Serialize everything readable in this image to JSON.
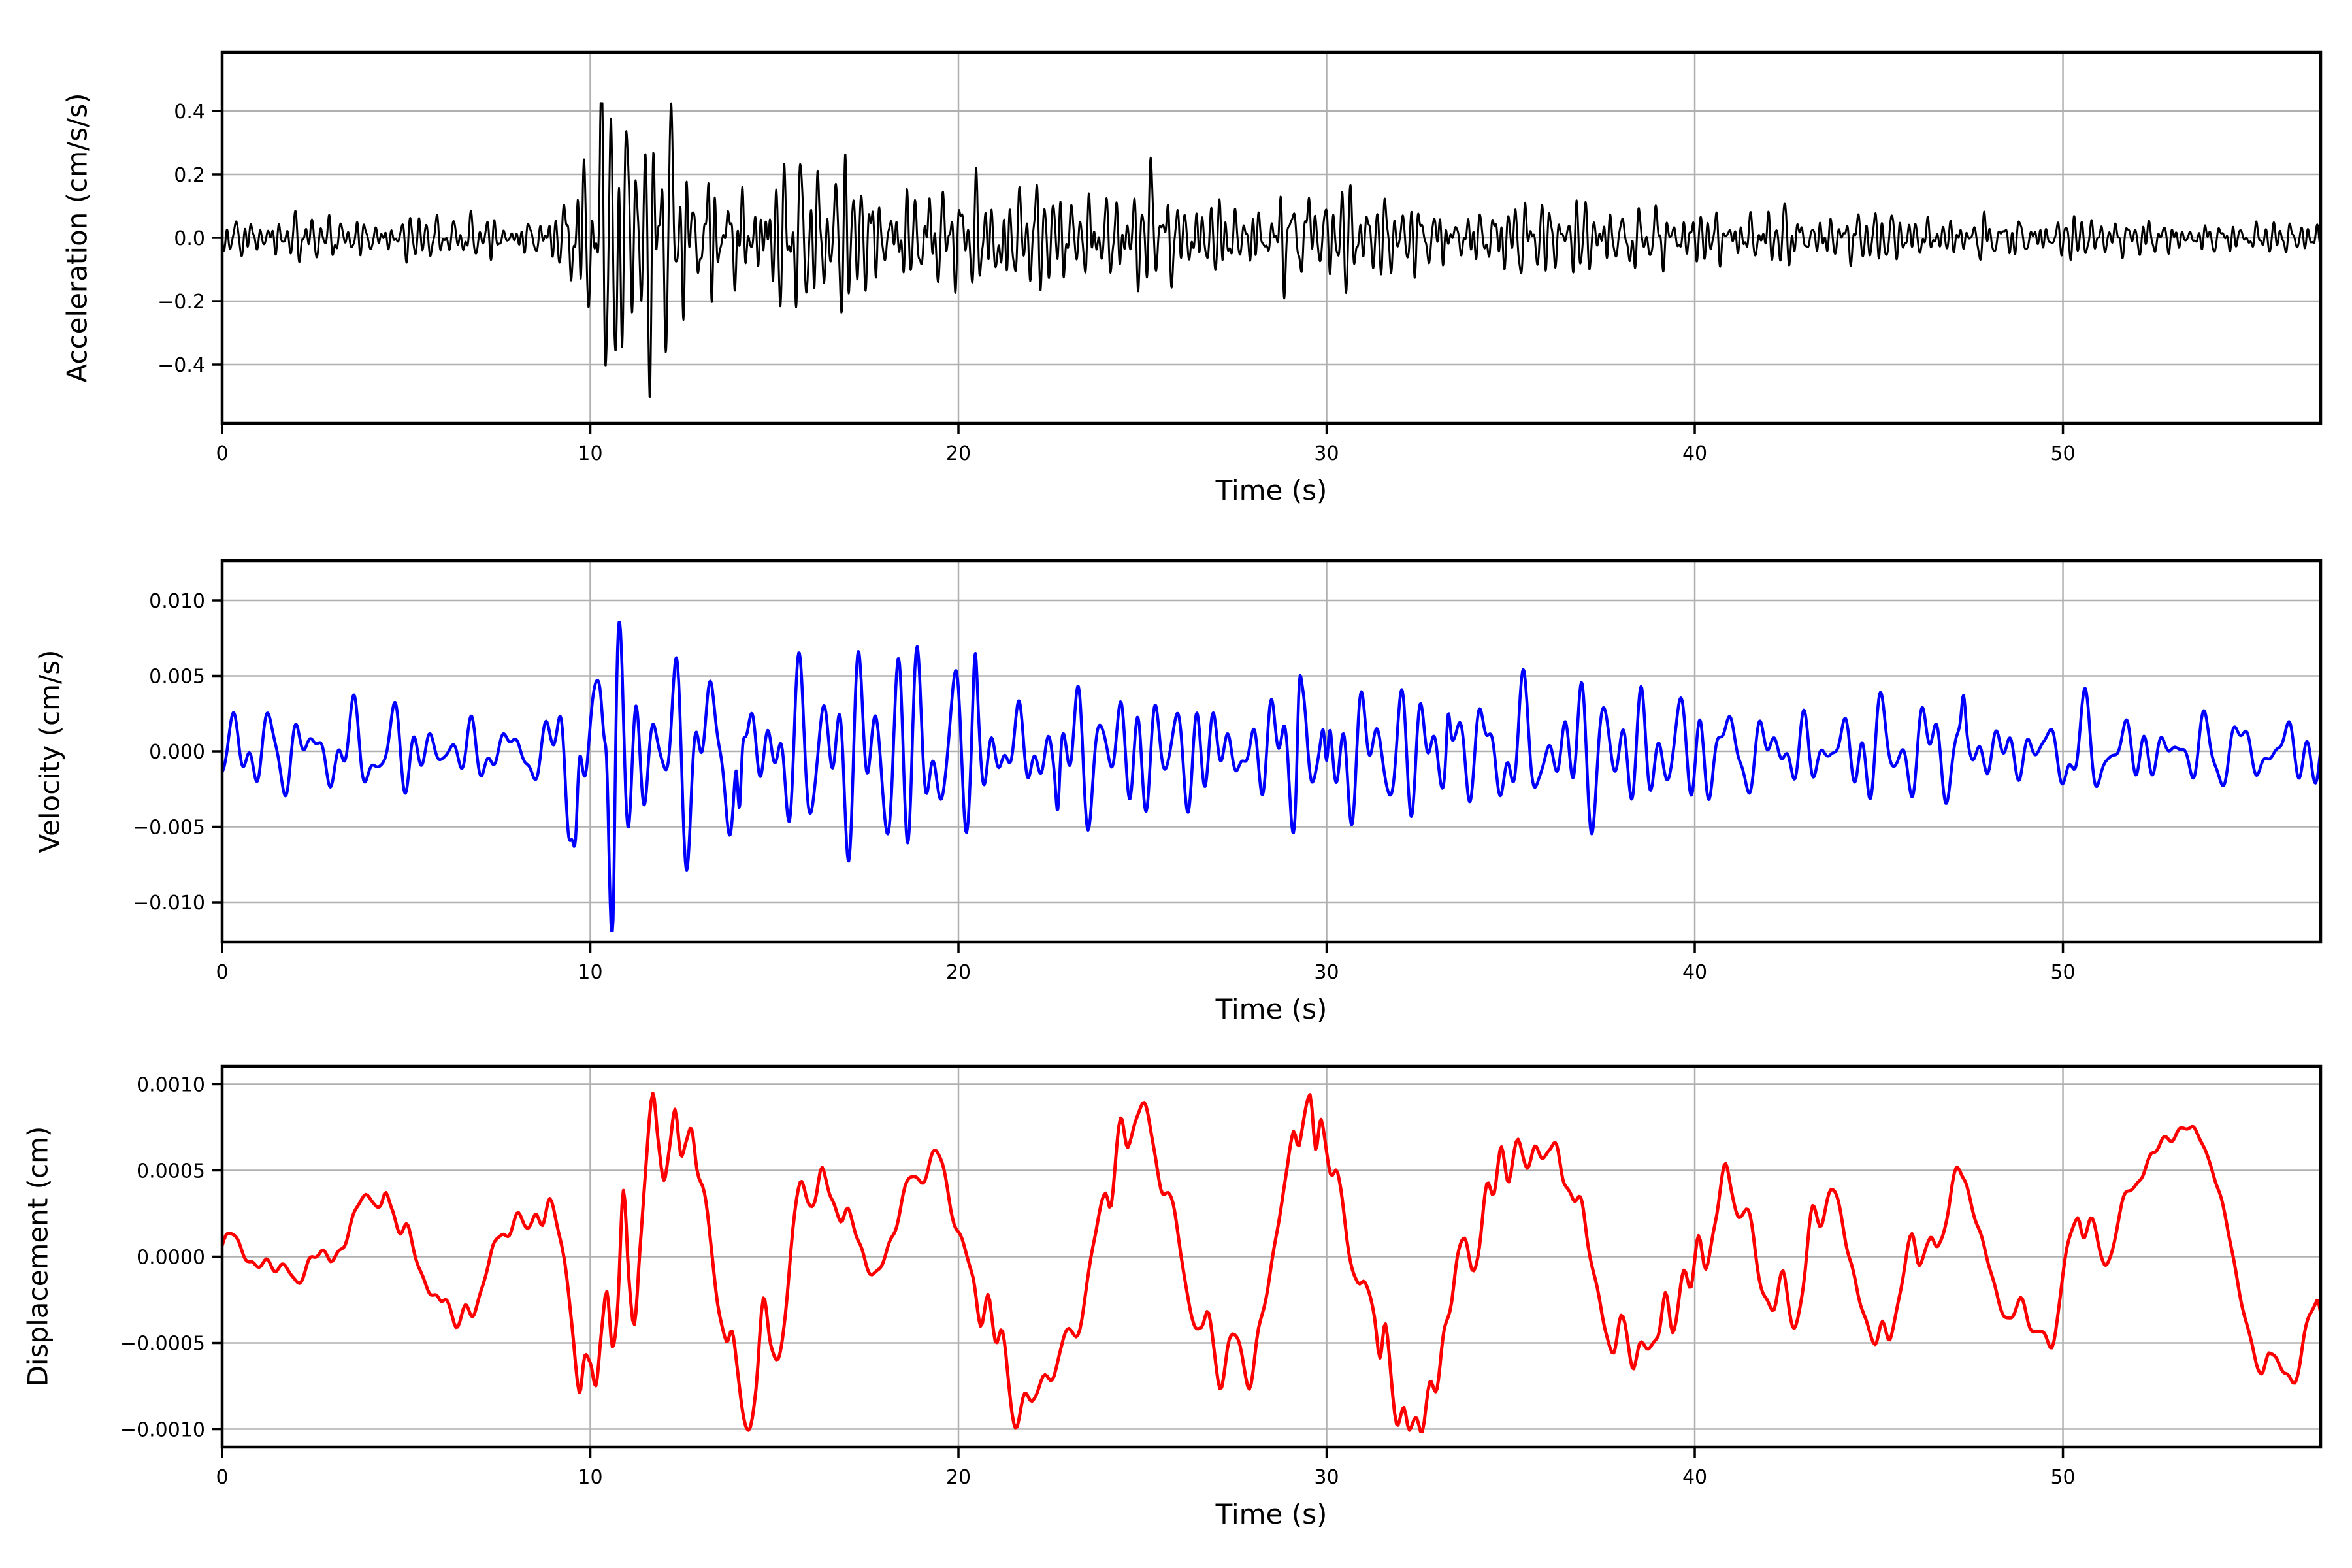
{
  "figure": {
    "background": "#ffffff",
    "grid_color": "#b0b0b0",
    "axis_color": "#000000",
    "n_subplots": 3,
    "description": "Three stacked seismogram traces: acceleration, velocity and displacement versus time"
  },
  "chart_data": [
    {
      "type": "line",
      "series_name": "acceleration",
      "color": "#000000",
      "xlabel": "Time (s)",
      "ylabel": "Acceleration (cm/s/s)",
      "xlim": [
        0,
        57
      ],
      "ylim": [
        -0.5855,
        0.5855
      ],
      "grid": true,
      "legend_position": "none",
      "xtick_values": [
        0,
        10,
        20,
        30,
        40,
        50
      ],
      "xtick_labels": [
        "0",
        "10",
        "20",
        "30",
        "40",
        "50"
      ],
      "ytick_values": [
        0.4,
        0.2,
        0.0,
        -0.2,
        -0.4
      ],
      "ytick_labels": [
        "0.4",
        "0.2",
        "0.0",
        "−0.2",
        "−0.4"
      ],
      "notable_peaks": {
        "max": 0.42,
        "max_t": 11.0,
        "min": -0.55,
        "min_t": 10.7
      },
      "signal": {
        "kind": "stochastic",
        "t_max": 57,
        "dt": 0.01,
        "freq_band_hz": [
          1.5,
          8.0
        ],
        "components": 12,
        "seed": 11,
        "norm_factor": 0.45,
        "envelope_t": [
          0,
          2,
          4,
          6,
          8,
          9,
          9.4,
          9.8,
          10.2,
          10.6,
          11,
          11.5,
          12,
          13,
          14,
          15,
          16,
          17,
          18,
          19,
          20,
          21,
          22,
          23,
          24,
          25,
          26,
          27,
          28,
          29,
          30,
          32,
          34,
          36,
          38,
          40,
          42,
          44,
          46,
          48,
          50,
          52,
          54,
          56,
          57
        ],
        "envelope_a": [
          0.06,
          0.065,
          0.06,
          0.062,
          0.065,
          0.08,
          0.18,
          0.27,
          0.32,
          0.34,
          0.32,
          0.3,
          0.29,
          0.25,
          0.23,
          0.215,
          0.2,
          0.18,
          0.165,
          0.155,
          0.16,
          0.17,
          0.15,
          0.145,
          0.14,
          0.15,
          0.125,
          0.125,
          0.13,
          0.15,
          0.125,
          0.115,
          0.11,
          0.105,
          0.1,
          0.09,
          0.085,
          0.08,
          0.075,
          0.07,
          0.065,
          0.06,
          0.055,
          0.052,
          0.05
        ],
        "spikes": [
          {
            "t": 10.33,
            "a": 0.2,
            "w": 0.04
          },
          {
            "t": 10.72,
            "a": -0.33,
            "w": 0.035
          },
          {
            "t": 11.0,
            "a": 0.2,
            "w": 0.04
          },
          {
            "t": 11.6,
            "a": -0.1,
            "w": 0.05
          },
          {
            "t": 12.2,
            "a": 0.13,
            "w": 0.05
          },
          {
            "t": 21.15,
            "a": -0.1,
            "w": 0.05
          },
          {
            "t": 25.3,
            "a": 0.14,
            "w": 0.04
          },
          {
            "t": 29.6,
            "a": 0.07,
            "w": 0.05
          },
          {
            "t": 38.3,
            "a": -0.05,
            "w": 0.05
          }
        ],
        "clip": [
          -0.555,
          0.425
        ]
      }
    },
    {
      "type": "line",
      "series_name": "velocity",
      "color": "#0000ff",
      "xlabel": "Time (s)",
      "ylabel": "Velocity (cm/s)",
      "xlim": [
        0,
        57
      ],
      "ylim": [
        -0.01264,
        0.01264
      ],
      "grid": true,
      "legend_position": "none",
      "xtick_values": [
        0,
        10,
        20,
        30,
        40,
        50
      ],
      "xtick_labels": [
        "0",
        "10",
        "20",
        "30",
        "40",
        "50"
      ],
      "ytick_values": [
        0.01,
        0.005,
        0.0,
        -0.005,
        -0.01
      ],
      "ytick_labels": [
        "0.010",
        "0.005",
        "0.000",
        "−0.005",
        "−0.010"
      ],
      "notable_peaks": {
        "max": 0.0095,
        "max_t": 10.4,
        "min": -0.0118,
        "min_t": 10.6
      },
      "signal": {
        "kind": "stochastic",
        "t_max": 57,
        "dt": 0.02,
        "freq_band_hz": [
          0.7,
          3.2
        ],
        "components": 10,
        "seed": 23,
        "norm_factor": 0.42,
        "envelope_t": [
          0,
          2,
          4,
          6,
          8,
          9,
          9.4,
          9.8,
          10.2,
          10.6,
          11,
          11.5,
          12,
          12.5,
          13,
          13.5,
          14,
          14.5,
          15,
          16,
          17,
          18,
          19,
          20,
          21,
          22,
          23,
          24,
          25,
          26,
          27,
          28,
          29,
          29.6,
          30,
          31,
          32,
          33,
          34,
          35,
          36,
          37,
          38,
          39,
          40,
          42,
          44,
          46,
          48,
          50,
          52,
          54,
          56,
          57
        ],
        "envelope_a": [
          0.0022,
          0.0028,
          0.0026,
          0.0021,
          0.002,
          0.0024,
          0.006,
          0.008,
          0.0085,
          0.0095,
          0.008,
          0.0078,
          0.0068,
          0.006,
          0.0055,
          0.0058,
          0.0062,
          0.006,
          0.0052,
          0.0056,
          0.0054,
          0.0056,
          0.0055,
          0.0052,
          0.005,
          0.0052,
          0.0048,
          0.0045,
          0.0048,
          0.0042,
          0.0048,
          0.005,
          0.006,
          0.0065,
          0.0055,
          0.0042,
          0.0042,
          0.0048,
          0.0042,
          0.0044,
          0.004,
          0.0037,
          0.0033,
          0.0031,
          0.0032,
          0.0029,
          0.003,
          0.0029,
          0.0026,
          0.0022,
          0.0022,
          0.002,
          0.0019,
          0.0019
        ],
        "spikes": [
          {
            "t": 9.6,
            "a": -0.0055,
            "w": 0.06
          },
          {
            "t": 10.45,
            "a": 0.005,
            "w": 0.05
          },
          {
            "t": 10.62,
            "a": -0.0065,
            "w": 0.05
          },
          {
            "t": 14.05,
            "a": -0.0058,
            "w": 0.05
          },
          {
            "t": 20.45,
            "a": 0.0028,
            "w": 0.05
          },
          {
            "t": 22.7,
            "a": -0.0032,
            "w": 0.05
          },
          {
            "t": 29.25,
            "a": 0.0035,
            "w": 0.05
          },
          {
            "t": 30.0,
            "a": -0.004,
            "w": 0.05
          },
          {
            "t": 33.3,
            "a": 0.003,
            "w": 0.05
          },
          {
            "t": 47.3,
            "a": 0.0022,
            "w": 0.05
          }
        ],
        "clip": [
          -0.0119,
          0.0097
        ]
      }
    },
    {
      "type": "line",
      "series_name": "displacement",
      "color": "#ff0000",
      "xlabel": "Time (s)",
      "ylabel": "Displacement (cm)",
      "xlim": [
        0,
        57
      ],
      "ylim": [
        -0.001104,
        0.001104
      ],
      "grid": true,
      "legend_position": "none",
      "xtick_values": [
        0,
        10,
        20,
        30,
        40,
        50
      ],
      "xtick_labels": [
        "0",
        "10",
        "20",
        "30",
        "40",
        "50"
      ],
      "ytick_values": [
        0.001,
        0.0005,
        0.0,
        -0.0005,
        -0.001
      ],
      "ytick_labels": [
        "0.0010",
        "0.0005",
        "0.0000",
        "−0.0005",
        "−0.0010"
      ],
      "notable_peaks": {
        "max": 0.00094,
        "max_t": 29.5,
        "min": -0.00104,
        "min_t": 21.6
      },
      "signal": {
        "kind": "anchors",
        "t_max": 57,
        "unit_scale": 0.0001,
        "anchors_t": [
          0,
          0.3,
          0.6,
          0.9,
          1.2,
          1.5,
          1.8,
          2.1,
          2.4,
          2.7,
          3.0,
          3.3,
          3.6,
          3.9,
          4.1,
          4.3,
          4.45,
          4.6,
          4.8,
          5.0,
          5.2,
          5.5,
          5.9,
          6.1,
          6.35,
          6.6,
          6.8,
          7.0,
          7.2,
          7.4,
          7.6,
          7.8,
          8.0,
          8.2,
          8.5,
          8.7,
          8.9,
          9.1,
          9.3,
          9.5,
          9.7,
          9.85,
          10.0,
          10.15,
          10.3,
          10.45,
          10.6,
          10.75,
          10.9,
          11.05,
          11.2,
          11.35,
          11.5,
          11.7,
          11.85,
          12.0,
          12.15,
          12.3,
          12.45,
          12.6,
          12.75,
          12.9,
          13.1,
          13.3,
          13.5,
          13.7,
          13.85,
          14.0,
          14.3,
          14.5,
          14.7,
          14.9,
          15.1,
          15.3,
          15.55,
          15.7,
          15.9,
          16.1,
          16.3,
          16.55,
          16.8,
          17.0,
          17.3,
          17.6,
          17.9,
          18.2,
          18.5,
          18.7,
          19.0,
          19.3,
          19.55,
          19.8,
          20.1,
          20.4,
          20.6,
          20.8,
          21.0,
          21.2,
          21.55,
          21.8,
          22.0,
          22.25,
          22.5,
          22.75,
          22.95,
          23.2,
          23.45,
          23.7,
          24.0,
          24.15,
          24.4,
          24.6,
          24.85,
          25.05,
          25.3,
          25.5,
          25.7,
          26.0,
          26.3,
          26.6,
          26.8,
          27.1,
          27.35,
          27.6,
          27.9,
          28.15,
          28.4,
          28.7,
          28.9,
          29.1,
          29.25,
          29.55,
          29.7,
          29.85,
          30.1,
          30.3,
          30.6,
          30.85,
          31.05,
          31.3,
          31.45,
          31.6,
          31.9,
          32.1,
          32.25,
          32.45,
          32.6,
          32.8,
          33.0,
          33.2,
          33.4,
          33.55,
          33.75,
          33.95,
          34.15,
          34.35,
          34.55,
          34.75,
          34.95,
          35.2,
          35.45,
          35.65,
          35.85,
          36.05,
          36.25,
          36.45,
          36.7,
          36.9,
          37.1,
          37.4,
          37.6,
          37.8,
          38.0,
          38.3,
          38.5,
          38.75,
          39.0,
          39.2,
          39.4,
          39.7,
          39.9,
          40.1,
          40.3,
          40.55,
          40.8,
          41.0,
          41.2,
          41.45,
          41.7,
          41.95,
          42.15,
          42.4,
          42.7,
          42.95,
          43.2,
          43.45,
          43.7,
          43.95,
          44.2,
          44.5,
          44.9,
          45.1,
          45.3,
          45.6,
          45.9,
          46.1,
          46.4,
          46.6,
          46.85,
          47.1,
          47.3,
          47.55,
          47.8,
          48.1,
          48.35,
          48.6,
          48.85,
          49.1,
          49.3,
          49.5,
          49.7,
          49.9,
          50.15,
          50.4,
          50.55,
          50.75,
          51.0,
          51.2,
          51.5,
          51.75,
          52.0,
          52.2,
          52.45,
          52.7,
          53.0,
          53.3,
          53.5,
          53.7,
          53.9,
          54.1,
          54.4,
          54.7,
          54.9,
          55.1,
          55.4,
          55.6,
          55.9,
          56.1,
          56.3,
          56.6,
          56.9,
          57.0
        ],
        "anchors_y": [
          0.6,
          1.1,
          0.3,
          -0.6,
          -0.1,
          -1.1,
          -0.5,
          -1.3,
          -0.5,
          0.4,
          -0.2,
          0.9,
          2.3,
          3.4,
          3.7,
          2.9,
          3.6,
          2.6,
          1.5,
          1.8,
          0.4,
          -1.2,
          -3.0,
          -2.4,
          -3.7,
          -3.1,
          -3.4,
          -2.3,
          -0.8,
          0.7,
          1.8,
          1.2,
          2.2,
          1.6,
          2.6,
          1.9,
          3.2,
          2.0,
          -0.6,
          -4.0,
          -7.7,
          -5.2,
          -6.2,
          -7.9,
          -4.6,
          -2.1,
          -4.9,
          -2.6,
          3.7,
          -1.1,
          -3.9,
          0.5,
          4.6,
          9.3,
          7.0,
          4.7,
          6.5,
          8.2,
          5.6,
          6.8,
          7.4,
          5.1,
          3.6,
          0.6,
          -3.4,
          -5.2,
          -4.6,
          -6.4,
          -10.1,
          -7.8,
          -2.6,
          -4.9,
          -6.2,
          -3.1,
          2.8,
          4.3,
          2.7,
          3.3,
          5.5,
          3.2,
          2.1,
          2.7,
          0.6,
          -0.5,
          -0.7,
          0.9,
          3.8,
          4.7,
          4.3,
          5.7,
          5.5,
          3.1,
          0.6,
          -1.4,
          -3.7,
          -2.3,
          -4.8,
          -4.3,
          -10.4,
          -7.6,
          -8.1,
          -7.3,
          -7.3,
          -5.6,
          -4.1,
          -4.6,
          -2.1,
          0.8,
          3.9,
          3.5,
          7.9,
          6.1,
          8.3,
          8.7,
          6.6,
          4.1,
          3.7,
          0.6,
          -2.8,
          -4.4,
          -3.2,
          -7.7,
          -5.1,
          -4.3,
          -7.8,
          -4.6,
          -1.5,
          2.1,
          4.6,
          7.5,
          6.2,
          9.4,
          6.4,
          8.5,
          4.4,
          4.7,
          0.6,
          -1.7,
          -1.3,
          -3.5,
          -6.0,
          -4.4,
          -9.3,
          -8.5,
          -10.2,
          -9.7,
          -10.0,
          -7.3,
          -7.6,
          -4.1,
          -2.3,
          -0.3,
          0.8,
          -0.8,
          1.1,
          4.1,
          3.5,
          6.3,
          4.4,
          6.8,
          5.3,
          6.6,
          5.1,
          6.2,
          6.7,
          4.5,
          3.1,
          3.5,
          0.6,
          -2.5,
          -4.0,
          -5.6,
          -3.7,
          -6.2,
          -4.9,
          -5.3,
          -4.6,
          -2.1,
          -4.7,
          -0.6,
          -1.3,
          0.8,
          -0.9,
          2.1,
          5.2,
          3.9,
          2.3,
          2.6,
          -0.8,
          -2.1,
          -2.9,
          -1.3,
          -4.1,
          -1.6,
          3.0,
          1.9,
          3.6,
          2.7,
          0.3,
          -2.9,
          -4.9,
          -4.0,
          -4.6,
          -1.6,
          0.8,
          -0.4,
          1.5,
          0.3,
          2.3,
          5.1,
          4.3,
          3.1,
          1.1,
          -1.8,
          -2.9,
          -3.5,
          -2.5,
          -3.9,
          -4.7,
          -4.5,
          -5.1,
          -2.3,
          0.5,
          2.1,
          1.3,
          2.3,
          0.5,
          -0.4,
          1.7,
          3.9,
          4.5,
          4.9,
          5.7,
          6.9,
          6.8,
          7.8,
          7.4,
          6.6,
          5.8,
          5.2,
          2.3,
          -1.1,
          -3.0,
          -5.0,
          -6.6,
          -5.3,
          -6.9,
          -6.7,
          -7.0,
          -4.3,
          -2.5,
          -3.3
        ],
        "texture": {
          "seed": 7,
          "components": [
            {
              "f": 1.4,
              "a": 0.25
            },
            {
              "f": 2.6,
              "a": 0.15
            },
            {
              "f": 0.9,
              "a": 0.2
            }
          ]
        },
        "clip": [
          -10.5,
          9.6
        ]
      }
    }
  ]
}
